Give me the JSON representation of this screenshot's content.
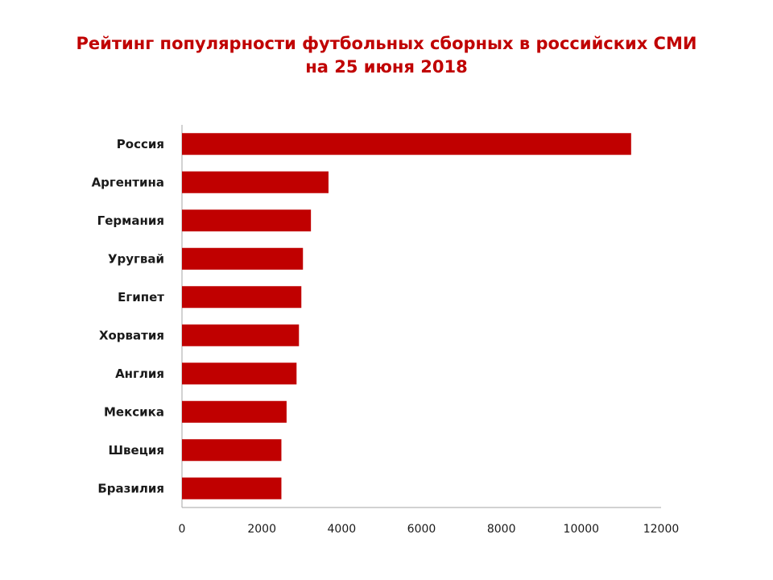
{
  "title": {
    "line1": "Рейтинг популярности футбольных сборных  в российских СМИ",
    "line2": "на 25 июня 2018"
  },
  "colors": {
    "bar": "#c00000",
    "title": "#c00000",
    "axis": "#a6a6a6"
  },
  "chart_data": {
    "type": "bar",
    "orientation": "horizontal",
    "categories": [
      "Россия",
      "Аргентина",
      "Германия",
      "Уругвай",
      "Египет",
      "Хорватия",
      "Англия",
      "Мексика",
      "Швеция",
      "Бразилия"
    ],
    "values": [
      11250,
      3670,
      3230,
      3030,
      2990,
      2930,
      2870,
      2620,
      2490,
      2490
    ],
    "xlim": [
      0,
      12000
    ],
    "xticks": [
      0,
      2000,
      4000,
      6000,
      8000,
      10000,
      12000
    ],
    "grid": false,
    "legend": "none"
  }
}
